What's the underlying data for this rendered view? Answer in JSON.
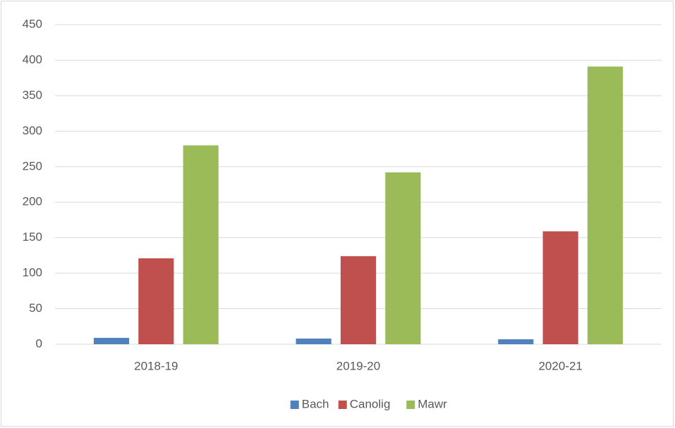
{
  "chart_data": {
    "type": "bar",
    "categories": [
      "2018-19",
      "2019-20",
      "2020-21"
    ],
    "series": [
      {
        "name": "Bach",
        "color": "#4f81bd",
        "values": [
          9,
          8,
          7
        ]
      },
      {
        "name": "Canolig",
        "color": "#c0504d",
        "values": [
          121,
          124,
          159
        ]
      },
      {
        "name": "Mawr",
        "color": "#9bbb59",
        "values": [
          280,
          242,
          391
        ]
      }
    ],
    "ylim": [
      0,
      450
    ],
    "yticks": [
      0,
      50,
      100,
      150,
      200,
      250,
      300,
      350,
      400,
      450
    ],
    "grid": true,
    "legend": "bottom"
  }
}
